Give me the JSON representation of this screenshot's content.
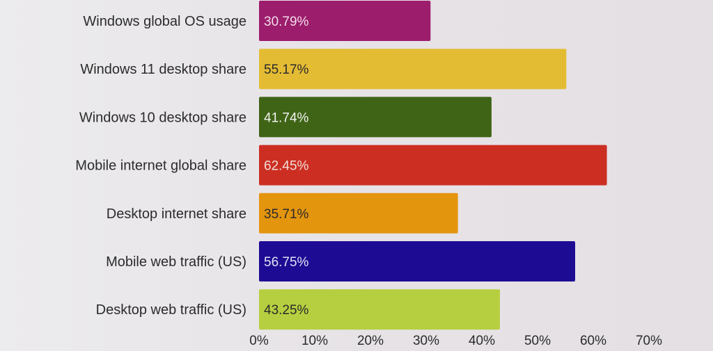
{
  "chart_data": {
    "type": "bar",
    "orientation": "horizontal",
    "categories": [
      "Windows global OS usage",
      "Windows 11 desktop share",
      "Windows 10 desktop share",
      "Mobile internet global share",
      "Desktop internet share",
      "Mobile web traffic (US)",
      "Desktop web traffic (US)"
    ],
    "values": [
      30.79,
      55.17,
      41.74,
      62.45,
      35.71,
      56.75,
      43.25
    ],
    "value_labels": [
      "30.79%",
      "55.17%",
      "41.74%",
      "62.45%",
      "35.71%",
      "56.75%",
      "43.25%"
    ],
    "colors": [
      "#9c1d6c",
      "#e4bc34",
      "#3f6416",
      "#cc2f22",
      "#e4950e",
      "#1d0b93",
      "#b6cf40"
    ],
    "label_colors": [
      "#f2dcea",
      "#2a2a2a",
      "#f2f2f2",
      "#f2dcd8",
      "#2a2a2a",
      "#e4e2f4",
      "#2a2a2a"
    ],
    "xlim": [
      0,
      70
    ],
    "xticks": [
      "0%",
      "10%",
      "20%",
      "30%",
      "40%",
      "50%",
      "60%",
      "70%"
    ],
    "xlabel": "",
    "ylabel": "",
    "title": "",
    "grid": false,
    "legend": "none"
  }
}
